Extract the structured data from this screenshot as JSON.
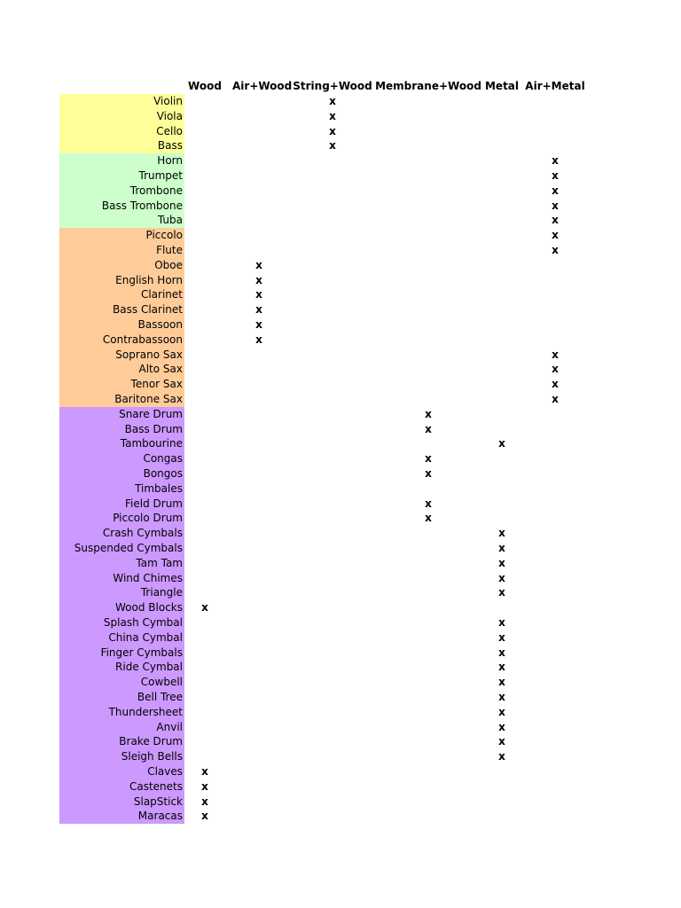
{
  "table": {
    "header": [
      "Wood",
      "Air+Wood",
      "String+Wood",
      "Membrane+Wood",
      "Metal",
      "Air+Metal"
    ],
    "groups": [
      {
        "color": "#ffff99",
        "rows": [
          [
            "Violin",
            null,
            null,
            "x",
            null,
            null,
            null
          ],
          [
            "Viola",
            null,
            null,
            "x",
            null,
            null,
            null
          ],
          [
            "Cello",
            null,
            null,
            "x",
            null,
            null,
            null
          ],
          [
            "Bass",
            null,
            null,
            "x",
            null,
            null,
            null
          ]
        ]
      },
      {
        "color": "#ccffcc",
        "rows": [
          [
            "Horn",
            null,
            null,
            null,
            null,
            null,
            "x"
          ],
          [
            "Trumpet",
            null,
            null,
            null,
            null,
            null,
            "x"
          ],
          [
            "Trombone",
            null,
            null,
            null,
            null,
            null,
            "x"
          ],
          [
            "Bass Trombone",
            null,
            null,
            null,
            null,
            null,
            "x"
          ],
          [
            "Tuba",
            null,
            null,
            null,
            null,
            null,
            "x"
          ]
        ]
      },
      {
        "color": "#ffcc99",
        "rows": [
          [
            "Piccolo",
            null,
            null,
            null,
            null,
            null,
            "x"
          ],
          [
            "Flute",
            null,
            null,
            null,
            null,
            null,
            "x"
          ],
          [
            "Oboe",
            null,
            "x",
            null,
            null,
            null,
            null
          ],
          [
            "English Horn",
            null,
            "x",
            null,
            null,
            null,
            null
          ],
          [
            "Clarinet",
            null,
            "x",
            null,
            null,
            null,
            null
          ],
          [
            "Bass Clarinet",
            null,
            "x",
            null,
            null,
            null,
            null
          ],
          [
            "Bassoon",
            null,
            "x",
            null,
            null,
            null,
            null
          ],
          [
            "Contrabassoon",
            null,
            "x",
            null,
            null,
            null,
            null
          ],
          [
            "Soprano Sax",
            null,
            null,
            null,
            null,
            null,
            "x"
          ],
          [
            "Alto Sax",
            null,
            null,
            null,
            null,
            null,
            "x"
          ],
          [
            "Tenor Sax",
            null,
            null,
            null,
            null,
            null,
            "x"
          ],
          [
            "Baritone Sax",
            null,
            null,
            null,
            null,
            null,
            "x"
          ]
        ]
      },
      {
        "color": "#cc99ff",
        "rows": [
          [
            "Snare Drum",
            null,
            null,
            null,
            "x",
            null,
            null
          ],
          [
            "Bass Drum",
            null,
            null,
            null,
            "x",
            null,
            null
          ],
          [
            "Tambourine",
            null,
            null,
            null,
            null,
            "x",
            null
          ],
          [
            "Congas",
            null,
            null,
            null,
            "x",
            null,
            null
          ],
          [
            "Bongos",
            null,
            null,
            null,
            "x",
            null,
            null
          ],
          [
            "Timbales",
            null,
            null,
            null,
            null,
            null,
            null
          ],
          [
            "Field Drum",
            null,
            null,
            null,
            "x",
            null,
            null
          ],
          [
            "Piccolo Drum",
            null,
            null,
            null,
            "x",
            null,
            null
          ],
          [
            "Crash Cymbals",
            null,
            null,
            null,
            null,
            "x",
            null
          ],
          [
            "Suspended Cymbals",
            null,
            null,
            null,
            null,
            "x",
            null
          ],
          [
            "Tam Tam",
            null,
            null,
            null,
            null,
            "x",
            null
          ],
          [
            "Wind Chimes",
            null,
            null,
            null,
            null,
            "x",
            null
          ],
          [
            "Triangle",
            null,
            null,
            null,
            null,
            "x",
            null
          ],
          [
            "Wood Blocks",
            "x",
            null,
            null,
            null,
            null,
            null
          ],
          [
            "Splash Cymbal",
            null,
            null,
            null,
            null,
            "x",
            null
          ],
          [
            "China Cymbal",
            null,
            null,
            null,
            null,
            "x",
            null
          ],
          [
            "Finger Cymbals",
            null,
            null,
            null,
            null,
            "x",
            null
          ],
          [
            "Ride Cymbal",
            null,
            null,
            null,
            null,
            "x",
            null
          ],
          [
            "Cowbell",
            null,
            null,
            null,
            null,
            "x",
            null
          ],
          [
            "Bell Tree",
            null,
            null,
            null,
            null,
            "x",
            null
          ],
          [
            "Thundersheet",
            null,
            null,
            null,
            null,
            "x",
            null
          ],
          [
            "Anvil",
            null,
            null,
            null,
            null,
            "x",
            null
          ],
          [
            "Brake Drum",
            null,
            null,
            null,
            null,
            "x",
            null
          ],
          [
            "Sleigh Bells",
            null,
            null,
            null,
            null,
            "x",
            null
          ],
          [
            "Claves",
            "x",
            null,
            null,
            null,
            null,
            null
          ],
          [
            "Castenets",
            "x",
            null,
            null,
            null,
            null,
            null
          ],
          [
            "SlapStick",
            "x",
            null,
            null,
            null,
            null,
            null
          ],
          [
            "Maracas",
            "x",
            null,
            null,
            null,
            null,
            null
          ]
        ]
      }
    ]
  }
}
